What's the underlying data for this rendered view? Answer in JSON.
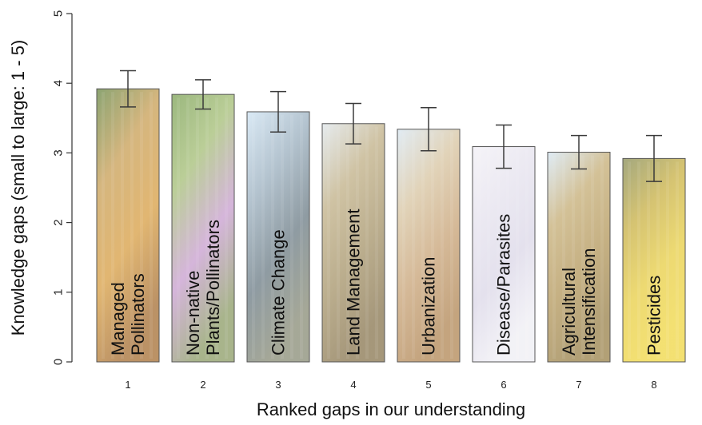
{
  "chart_data": {
    "type": "bar",
    "categories": [
      "1",
      "2",
      "3",
      "4",
      "5",
      "6",
      "7",
      "8"
    ],
    "bar_labels": [
      [
        "Managed",
        "Pollinators"
      ],
      [
        "Non-native",
        "Plants/Pollinators"
      ],
      [
        "Climate Change"
      ],
      [
        "Land Management"
      ],
      [
        "Urbanization"
      ],
      [
        "Disease/Parasites"
      ],
      [
        "Agricultural",
        "Intensification"
      ],
      [
        "Pesticides"
      ]
    ],
    "values": [
      3.92,
      3.84,
      3.59,
      3.42,
      3.34,
      3.09,
      3.01,
      2.92
    ],
    "error_low": [
      3.66,
      3.63,
      3.3,
      3.13,
      3.03,
      2.78,
      2.77,
      2.59
    ],
    "error_high": [
      4.18,
      4.05,
      3.88,
      3.71,
      3.65,
      3.4,
      3.25,
      3.25
    ],
    "ylim": [
      0,
      5
    ],
    "yticks": [
      "0",
      "1",
      "2",
      "3",
      "4",
      "5"
    ],
    "xlabel": "Ranked gaps in our understanding",
    "ylabel": "Knowledge gaps (small to large: 1 - 5)",
    "bar_image_palettes": [
      [
        "#6b8a4a",
        "#c9a15a",
        "#d9a24a",
        "#a8733a"
      ],
      [
        "#7fa35a",
        "#a7c07a",
        "#c9a0d0",
        "#8f9f6a"
      ],
      [
        "#cfe3f2",
        "#9fb3c2",
        "#6f7f88",
        "#8c8f7a"
      ],
      [
        "#dfe6ea",
        "#c2b28a",
        "#a8976e",
        "#8c7a55"
      ],
      [
        "#d8e6f0",
        "#d9c7a5",
        "#c9a57a",
        "#b38a5a"
      ],
      [
        "#f2f0f6",
        "#e6e3ee",
        "#dcd8e8",
        "#efeef4"
      ],
      [
        "#d6e6f2",
        "#c7b07a",
        "#b59a60",
        "#9c8550"
      ],
      [
        "#8a8f5a",
        "#c9b24a",
        "#e8cf4a",
        "#f0d84a"
      ]
    ]
  }
}
